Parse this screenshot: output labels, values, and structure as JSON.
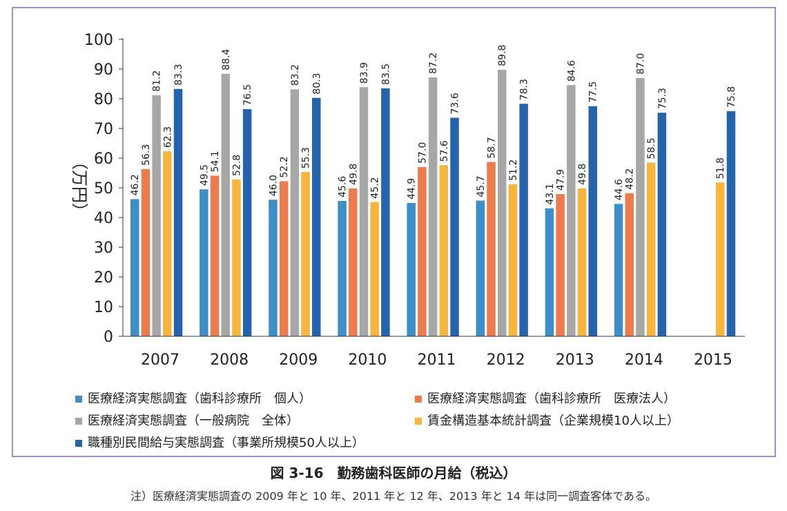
{
  "chart_data": {
    "type": "bar",
    "ylabel": "（万円）",
    "ylim": [
      0,
      100
    ],
    "yticks": [
      "0",
      "10",
      "20",
      "30",
      "40",
      "50",
      "60",
      "70",
      "80",
      "90",
      "100"
    ],
    "categories": [
      "2007",
      "2008",
      "2009",
      "2010",
      "2011",
      "2012",
      "2013",
      "2014",
      "2015"
    ],
    "series": [
      {
        "name": "医療経済実態調査（歯科診療所　個人）",
        "color": "#3d8ec9",
        "values": [
          46.2,
          49.5,
          46.0,
          45.6,
          44.9,
          45.7,
          43.1,
          44.6,
          null
        ],
        "labels": [
          "46.2",
          "49.5",
          "46.0",
          "45.6",
          "44.9",
          "45.7",
          "43.1",
          "44.6",
          ""
        ]
      },
      {
        "name": "医療経済実態調査（歯科診療所　医療法人）",
        "color": "#ec7b4d",
        "values": [
          56.3,
          54.1,
          52.2,
          49.8,
          57.0,
          58.7,
          47.9,
          48.2,
          null
        ],
        "labels": [
          "56.3",
          "54.1",
          "52.2",
          "49.8",
          "57.0",
          "58.7",
          "47.9",
          "48.2",
          ""
        ]
      },
      {
        "name": "医療経済実態調査（一般病院　全体）",
        "color": "#a7a7a7",
        "values": [
          81.2,
          88.4,
          83.2,
          83.9,
          87.2,
          89.8,
          84.6,
          87.0,
          null
        ],
        "labels": [
          "81.2",
          "88.4",
          "83.2",
          "83.9",
          "87.2",
          "89.8",
          "84.6",
          "87.0",
          ""
        ]
      },
      {
        "name": "賃金構造基本統計調査（企業規模10人以上）",
        "color": "#f7b53c",
        "values": [
          62.3,
          52.8,
          55.3,
          45.2,
          57.6,
          51.2,
          49.8,
          58.5,
          51.8
        ],
        "labels": [
          "62.3",
          "52.8",
          "55.3",
          "45.2",
          "57.6",
          "51.2",
          "49.8",
          "58.5",
          "51.8"
        ]
      },
      {
        "name": "職種別民間給与実態調査（事業所規模50人以上）",
        "color": "#2563ad",
        "values": [
          83.3,
          76.5,
          80.3,
          83.5,
          73.6,
          78.3,
          77.5,
          75.3,
          75.8
        ],
        "labels": [
          "83.3",
          "76.5",
          "80.3",
          "83.5",
          "73.6",
          "78.3",
          "77.5",
          "75.3",
          "75.8"
        ]
      }
    ]
  },
  "caption": "図 3-16　勤務歯科医師の月給（税込）",
  "note": "注）医療経済実態調査の 2009 年と 10 年、2011 年と 12 年、2013 年と 14 年は同一調査客体である。"
}
